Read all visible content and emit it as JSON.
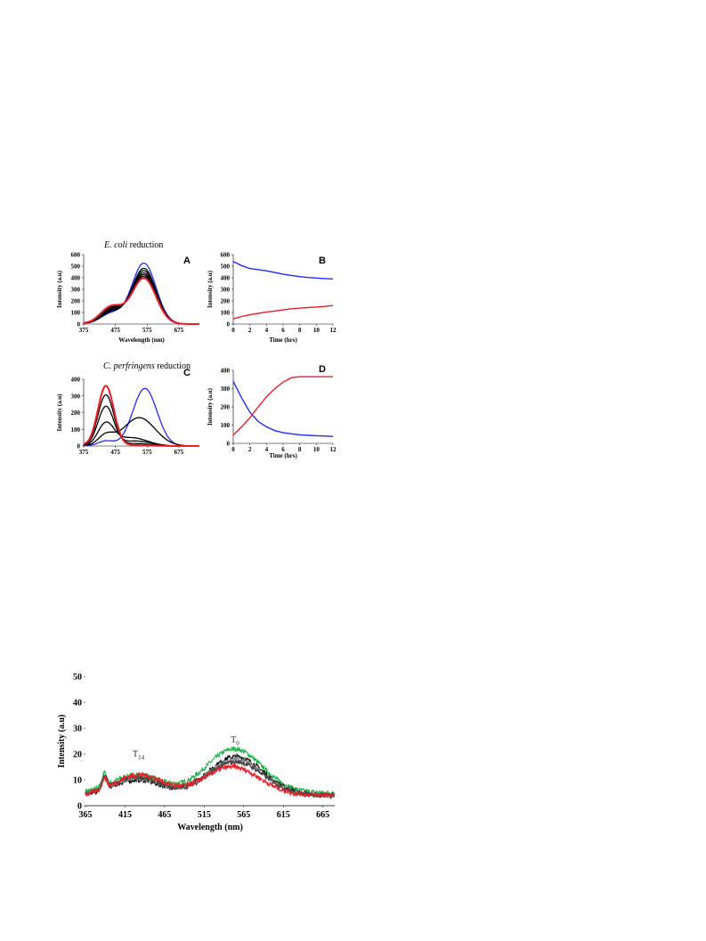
{
  "colors": {
    "blue": "#1f2bff",
    "red": "#ee1c24",
    "black": "#000000",
    "gray": "#8c8c8c",
    "green": "#1db64a",
    "dark": "#444444"
  },
  "figure1": {
    "caption_A_italic": "E. coli",
    "caption_A_rest": " reduction",
    "caption_C_italic": "C. perfringens",
    "caption_C_rest": " reduction"
  },
  "chart_data": [
    {
      "id": "A",
      "type": "line",
      "panel_label": "A",
      "xlabel": "Wavelength (nm)",
      "ylabel": "Intensity (a.u)",
      "xlim": [
        375,
        740
      ],
      "ylim": [
        0,
        600
      ],
      "xticks": [
        375,
        475,
        575,
        675
      ],
      "yticks": [
        0,
        100,
        200,
        300,
        400,
        500,
        600
      ],
      "peak_model": {
        "description": "spectra shown as sums of two gaussian bands",
        "series": [
          {
            "color": "blue",
            "bands": [
              [
                463,
                35,
                90
              ],
              [
                565,
                38,
                525
              ]
            ]
          },
          {
            "color": "black",
            "bands": [
              [
                463,
                35,
                100
              ],
              [
                565,
                38,
                480
              ]
            ]
          },
          {
            "color": "black",
            "bands": [
              [
                463,
                35,
                110
              ],
              [
                565,
                38,
                460
              ]
            ]
          },
          {
            "color": "black",
            "bands": [
              [
                463,
                35,
                120
              ],
              [
                565,
                38,
                440
              ]
            ]
          },
          {
            "color": "black",
            "bands": [
              [
                463,
                35,
                130
              ],
              [
                565,
                38,
                425
              ]
            ]
          },
          {
            "color": "black",
            "bands": [
              [
                463,
                35,
                140
              ],
              [
                565,
                38,
                410
              ]
            ]
          },
          {
            "color": "red",
            "bands": [
              [
                463,
                35,
                150
              ],
              [
                565,
                38,
                395
              ]
            ]
          }
        ]
      }
    },
    {
      "id": "B",
      "type": "line",
      "panel_label": "B",
      "xlabel": "Time (hrs)",
      "ylabel": "Intensity (a.u)",
      "xlim": [
        0,
        12
      ],
      "ylim": [
        0,
        600
      ],
      "xticks": [
        0,
        2,
        4,
        6,
        8,
        10,
        12
      ],
      "yticks": [
        0,
        100,
        200,
        300,
        400,
        500,
        600
      ],
      "series": [
        {
          "color": "blue",
          "x": [
            0,
            1,
            2,
            3,
            4,
            5,
            6,
            7,
            8,
            9,
            10,
            11,
            12
          ],
          "y": [
            540,
            505,
            480,
            470,
            460,
            445,
            430,
            420,
            410,
            402,
            398,
            393,
            390
          ]
        },
        {
          "color": "red",
          "x": [
            0,
            1,
            2,
            3,
            4,
            5,
            6,
            7,
            8,
            9,
            10,
            11,
            12
          ],
          "y": [
            45,
            65,
            80,
            92,
            103,
            113,
            122,
            132,
            138,
            142,
            147,
            152,
            160
          ]
        }
      ]
    },
    {
      "id": "C",
      "type": "line",
      "panel_label": "C",
      "xlabel": "",
      "ylabel": "Intensity (a.u)",
      "xlim": [
        375,
        740
      ],
      "ylim": [
        0,
        400
      ],
      "xticks": [
        375,
        475,
        575,
        675
      ],
      "yticks": [
        0,
        100,
        200,
        300,
        400
      ],
      "peak_model": {
        "description": "spectra shown as sums of two gaussian bands",
        "series": [
          {
            "color": "blue",
            "bands": [
              [
                445,
                25,
                30
              ],
              [
                568,
                38,
                345
              ]
            ]
          },
          {
            "color": "black",
            "bands": [
              [
                445,
                25,
                60
              ],
              [
                550,
                50,
                170
              ]
            ]
          },
          {
            "color": "black",
            "bands": [
              [
                445,
                25,
                130
              ],
              [
                525,
                50,
                50
              ]
            ]
          },
          {
            "color": "black",
            "bands": [
              [
                445,
                25,
                235
              ],
              [
                540,
                45,
                30
              ]
            ]
          },
          {
            "color": "black",
            "bands": [
              [
                445,
                25,
                305
              ],
              [
                540,
                45,
                15
              ]
            ]
          },
          {
            "color": "red",
            "bands": [
              [
                445,
                25,
                360
              ],
              [
                540,
                45,
                5
              ]
            ]
          }
        ]
      }
    },
    {
      "id": "D",
      "type": "line",
      "panel_label": "D",
      "xlabel": "Time (hrs)",
      "ylabel": "Intensity (a.u)",
      "xlim": [
        0,
        12
      ],
      "ylim": [
        0,
        400
      ],
      "xticks": [
        0,
        2,
        4,
        6,
        8,
        10,
        12
      ],
      "yticks": [
        0,
        100,
        200,
        300,
        400
      ],
      "series": [
        {
          "color": "blue",
          "x": [
            0,
            1,
            2,
            3,
            4,
            5,
            6,
            7,
            8,
            9,
            10,
            11,
            12
          ],
          "y": [
            340,
            250,
            170,
            120,
            90,
            70,
            58,
            52,
            47,
            44,
            42,
            40,
            38
          ]
        },
        {
          "color": "red",
          "x": [
            0,
            1,
            2,
            3,
            4,
            5,
            6,
            7,
            8,
            9,
            10,
            11,
            12
          ],
          "y": [
            45,
            90,
            140,
            200,
            255,
            300,
            335,
            360,
            365,
            365,
            365,
            365,
            365
          ]
        }
      ]
    },
    {
      "id": "E",
      "type": "line",
      "panel_label": "",
      "xlabel": "Wavelength (nm)",
      "ylabel": "Intensity (a.u)",
      "xlim": [
        365,
        680
      ],
      "ylim": [
        0,
        50
      ],
      "xticks": [
        365,
        415,
        465,
        515,
        565,
        615,
        665
      ],
      "yticks": [
        0,
        10,
        20,
        30,
        40,
        50
      ],
      "annotations": [
        {
          "label": "T",
          "sub": "14",
          "x": 432,
          "y": 19
        },
        {
          "label": "T",
          "sub": "0",
          "x": 554,
          "y": 24.5
        }
      ],
      "peak_model": {
        "description": "noisy spectra, sums of gaussian bands",
        "series": [
          {
            "color": "green",
            "bands": [
              [
                389,
                3,
                5
              ],
              [
                430,
                30,
                7
              ],
              [
                553,
                35,
                17
              ]
            ],
            "base": 5
          },
          {
            "color": "black",
            "bands": [
              [
                389,
                3,
                5
              ],
              [
                430,
                30,
                6
              ],
              [
                555,
                35,
                15
              ]
            ],
            "base": 4
          },
          {
            "color": "gray",
            "bands": [
              [
                389,
                3,
                5
              ],
              [
                430,
                30,
                6.5
              ],
              [
                555,
                35,
                14
              ]
            ],
            "base": 4
          },
          {
            "color": "dark",
            "bands": [
              [
                389,
                3,
                5
              ],
              [
                430,
                30,
                7
              ],
              [
                555,
                35,
                13
              ]
            ],
            "base": 4
          },
          {
            "color": "red",
            "bands": [
              [
                389,
                3,
                4
              ],
              [
                433,
                30,
                8
              ],
              [
                550,
                35,
                11
              ]
            ],
            "base": 4
          }
        ]
      }
    }
  ]
}
